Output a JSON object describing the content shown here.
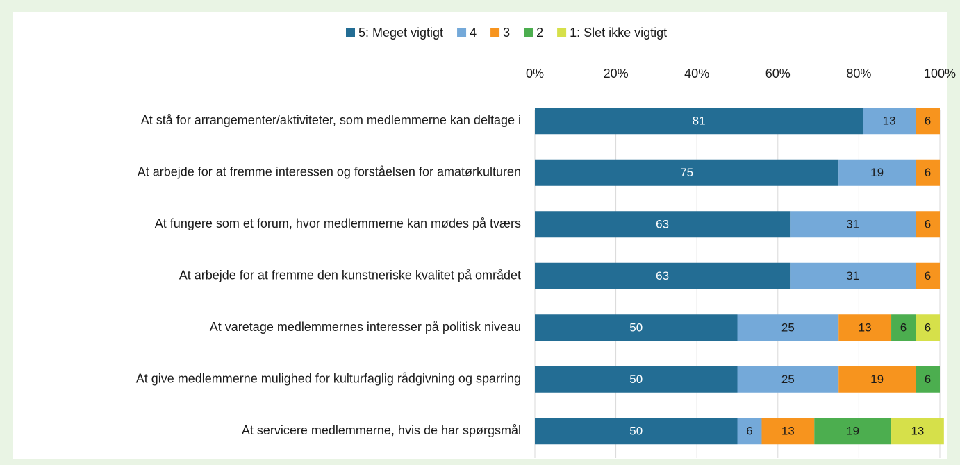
{
  "chart_data": {
    "type": "stacked_barh",
    "categories": [
      "At stå for arrangementer/aktiviteter, som medlemmerne kan deltage i",
      "At arbejde for at fremme interessen og forståelsen for amatørkulturen",
      "At fungere som et forum, hvor medlemmerne kan mødes på tværs",
      "At arbejde for at fremme den kunstneriske kvalitet på området",
      "At varetage medlemmernes interesser på politisk niveau",
      "At give medlemmerne mulighed for kulturfaglig rådgivning og sparring",
      "At servicere medlemmerne, hvis de har spørgsmål"
    ],
    "series": [
      {
        "name": "5: Meget vigtigt",
        "color": "#236d94",
        "values": [
          81,
          75,
          63,
          63,
          50,
          50,
          50
        ]
      },
      {
        "name": "4",
        "color": "#74a9d9",
        "values": [
          13,
          19,
          31,
          31,
          25,
          25,
          6
        ]
      },
      {
        "name": "3",
        "color": "#f7941e",
        "values": [
          6,
          6,
          6,
          6,
          13,
          19,
          13
        ]
      },
      {
        "name": "2",
        "color": "#4cae4f",
        "values": [
          null,
          null,
          null,
          null,
          6,
          6,
          19
        ]
      },
      {
        "name": "1: Slet ikke vigtigt",
        "color": "#d6e04a",
        "values": [
          null,
          null,
          null,
          null,
          6,
          null,
          13
        ]
      }
    ],
    "xlim": [
      0,
      100
    ],
    "xticks": [
      {
        "value": 0,
        "label": "0%"
      },
      {
        "value": 20,
        "label": "20%"
      },
      {
        "value": 40,
        "label": "40%"
      },
      {
        "value": 60,
        "label": "60%"
      },
      {
        "value": 80,
        "label": "80%"
      },
      {
        "value": 100,
        "label": "100%"
      }
    ],
    "grid": true,
    "legend": "top"
  }
}
